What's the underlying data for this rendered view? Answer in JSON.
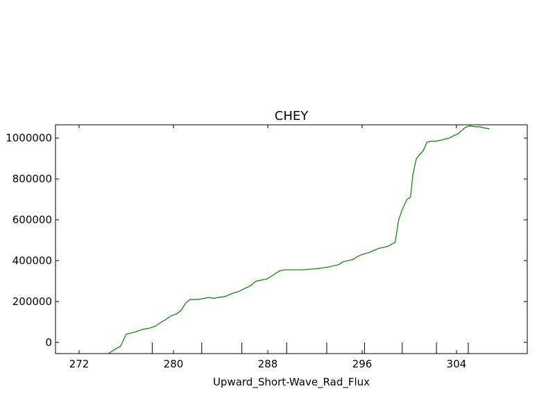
{
  "chart_data": {
    "type": "line",
    "title": "CHEY",
    "xlabel": "Upward_Short-Wave_Rad_Flux",
    "ylabel": "",
    "xlim": [
      270,
      310
    ],
    "ylim": [
      -55000,
      1065000
    ],
    "x_ticks": [
      272,
      280,
      288,
      296,
      304
    ],
    "x_tick_labels": [
      "272",
      "280",
      "288",
      "296",
      "304"
    ],
    "y_ticks": [
      0,
      200000,
      400000,
      600000,
      800000,
      1000000
    ],
    "y_tick_labels": [
      "0",
      "200000",
      "400000",
      "600000",
      "800000",
      "1000000"
    ],
    "x_minor_ticks": [
      278.2,
      282.4,
      285.8,
      289.6,
      293.0,
      296.2,
      299.4,
      302.3,
      305.0
    ],
    "grid": false,
    "series": [
      {
        "color": "#008000",
        "x": [
          270.0,
          272.0,
          274.5,
          275.0,
          275.5,
          276.0,
          276.7,
          277.2,
          277.5,
          278.0,
          278.5,
          279.0,
          279.3,
          279.8,
          280.3,
          280.7,
          281.0,
          281.4,
          281.7,
          282.1,
          282.6,
          283.0,
          283.4,
          283.8,
          284.4,
          285.0,
          285.6,
          285.9,
          286.3,
          286.6,
          287.0,
          287.5,
          287.9,
          288.2,
          288.6,
          289.0,
          289.4,
          289.8,
          290.3,
          291.0,
          291.5,
          292.0,
          292.4,
          292.7,
          293.2,
          293.6,
          294.0,
          294.4,
          294.8,
          295.2,
          295.6,
          296.0,
          296.6,
          297.0,
          297.4,
          297.8,
          298.2,
          298.5,
          298.8,
          299.1,
          299.4,
          299.8,
          300.1,
          300.3,
          300.6,
          300.9,
          301.2,
          301.5,
          301.9,
          302.3,
          302.7,
          303.0,
          303.4,
          303.7,
          304.1,
          304.7,
          305.1,
          305.6,
          306.0,
          306.3,
          306.5,
          306.8
        ],
        "y": [
          -100000,
          -80000,
          -55000,
          -35000,
          -20000,
          40000,
          50000,
          60000,
          65000,
          70000,
          80000,
          100000,
          110000,
          130000,
          140000,
          160000,
          190000,
          210000,
          210000,
          210000,
          215000,
          220000,
          215000,
          220000,
          225000,
          240000,
          250000,
          260000,
          270000,
          280000,
          300000,
          305000,
          310000,
          320000,
          335000,
          350000,
          355000,
          355000,
          355000,
          355000,
          358000,
          360000,
          362000,
          365000,
          370000,
          375000,
          380000,
          395000,
          400000,
          405000,
          420000,
          430000,
          440000,
          450000,
          460000,
          465000,
          470000,
          480000,
          490000,
          600000,
          650000,
          700000,
          710000,
          820000,
          900000,
          920000,
          940000,
          980000,
          985000,
          985000,
          990000,
          995000,
          1000000,
          1010000,
          1020000,
          1050000,
          1060000,
          1055000,
          1055000,
          1050000,
          1048000,
          1045000
        ]
      }
    ]
  }
}
